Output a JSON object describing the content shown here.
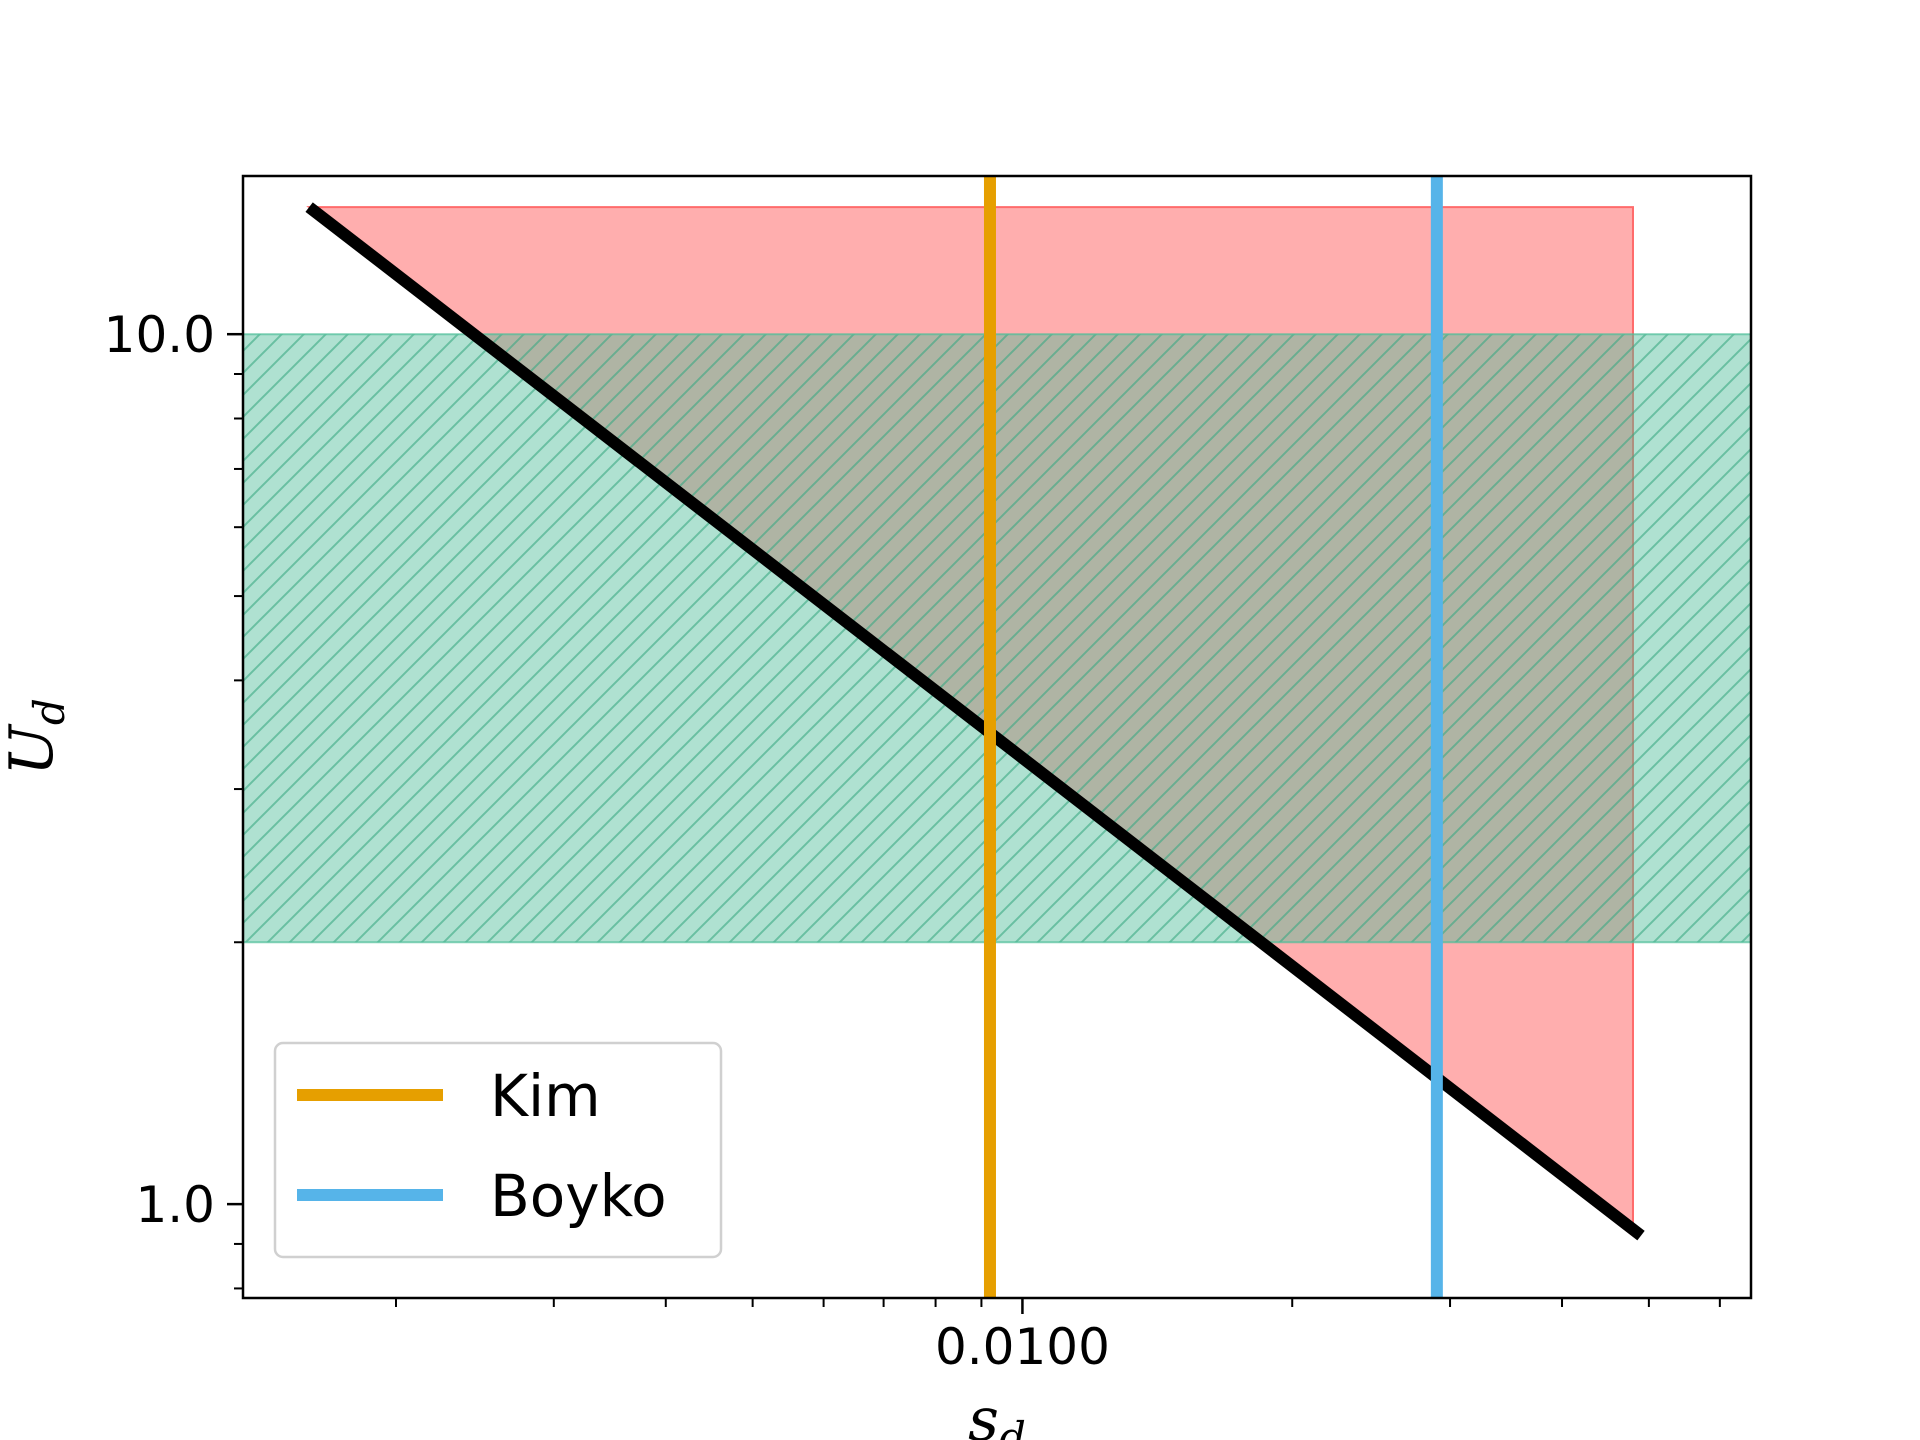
{
  "chart_data": {
    "type": "line",
    "xscale": "log",
    "yscale": "log",
    "xlabel": "s_d",
    "ylabel": "U_d",
    "xlim": [
      0.00135,
      0.065
    ],
    "ylim": [
      0.78,
      15.2
    ],
    "x_ticks": [
      {
        "value": 0.01,
        "label": "0.0100"
      }
    ],
    "y_ticks": [
      {
        "value": 1.0,
        "label": "1.0"
      },
      {
        "value": 10.0,
        "label": "10.0"
      }
    ],
    "series": [
      {
        "name": "",
        "kind": "curve",
        "color": "#000000",
        "x": [
          0.0016,
          0.049
        ],
        "y": [
          14.0,
          0.92
        ]
      },
      {
        "name": "Kim",
        "kind": "vline",
        "color": "#E69F00",
        "x": 0.0092
      },
      {
        "name": "Boyko",
        "kind": "vline",
        "color": "#56B4E9",
        "x": 0.029
      }
    ],
    "regions": [
      {
        "kind": "triangle",
        "color": "#FF6B6B",
        "alpha": 0.55,
        "x": [
          0.0016,
          0.048,
          0.048
        ],
        "y": [
          14.0,
          14.0,
          0.92
        ]
      },
      {
        "kind": "band",
        "color": "#4DBD98",
        "alpha": 0.45,
        "hatch": "//",
        "y": [
          2.0,
          10.0
        ]
      }
    ],
    "legend": {
      "position": "lower-left",
      "entries": [
        "Kim",
        "Boyko"
      ]
    },
    "grid": false
  }
}
